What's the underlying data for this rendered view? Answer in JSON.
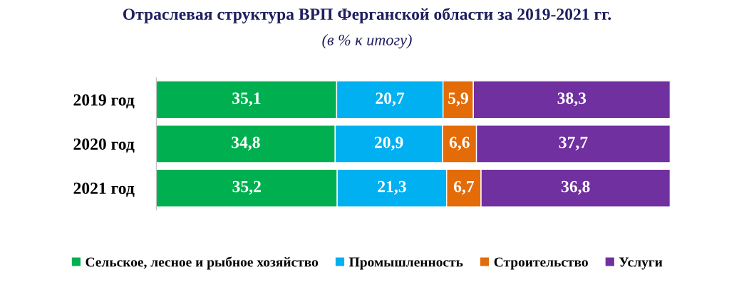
{
  "chart_data": {
    "type": "bar",
    "orientation": "horizontal",
    "stacked": true,
    "legend": "bottom",
    "grid": false,
    "tick_labels": "y",
    "title": "Отраслевая структура ВРП Ферганской области за 2019-2021 гг.",
    "subtitle": "(в % к итогу)",
    "categories": [
      "2019 год",
      "2020 год",
      "2021 год"
    ],
    "series": [
      {
        "name": "Сельское, лесное и рыбное хозяйство",
        "color": "#00b050",
        "values": [
          35.1,
          34.8,
          35.2
        ],
        "value_labels": [
          "35,1",
          "34,8",
          "35,2"
        ]
      },
      {
        "name": "Промышленность",
        "color": "#00b0f0",
        "values": [
          20.7,
          20.9,
          21.3
        ],
        "value_labels": [
          "20,7",
          "20,9",
          "21,3"
        ]
      },
      {
        "name": "Строительство",
        "color": "#e36c09",
        "values": [
          5.9,
          6.6,
          6.7
        ],
        "value_labels": [
          "5,9",
          "6,6",
          "6,7"
        ]
      },
      {
        "name": "Услуги",
        "color": "#7030a0",
        "values": [
          38.3,
          37.7,
          36.8
        ],
        "value_labels": [
          "38,3",
          "37,7",
          "36,8"
        ]
      }
    ]
  }
}
